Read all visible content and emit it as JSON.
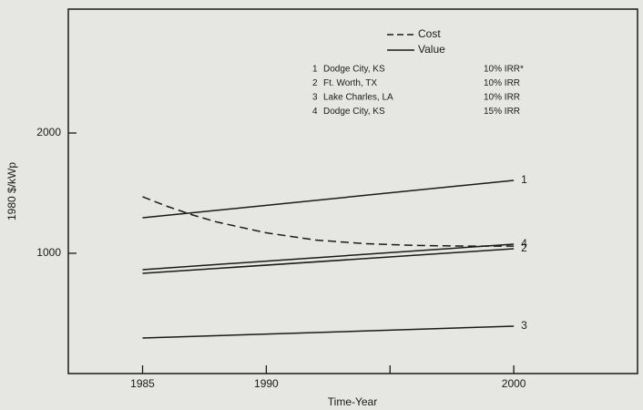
{
  "chart_data": {
    "type": "line",
    "title": null,
    "xlabel": "Time-Year",
    "ylabel": "1980 $/kWp",
    "xlim": [
      1982,
      2005
    ],
    "ylim": [
      0,
      3030
    ],
    "xticks": [
      1985,
      1990,
      {
        "value": 1995,
        "label": null
      },
      2000
    ],
    "yticks": [
      1000,
      2000
    ],
    "color": "#1a1a1a",
    "legend": [
      {
        "label": "Cost",
        "style": "dashed"
      },
      {
        "label": "Value",
        "style": "solid"
      }
    ],
    "scenarios": [
      {
        "number": "1",
        "location": "Dodge City, KS",
        "irr": "10% IRR*"
      },
      {
        "number": "2",
        "location": "Ft. Worth, TX",
        "irr": "10% IRR"
      },
      {
        "number": "3",
        "location": "Lake Charles, LA",
        "irr": "10% IRR"
      },
      {
        "number": "4",
        "location": "Dodge City, KS",
        "irr": "15% IRR"
      }
    ],
    "series": [
      {
        "label": null,
        "style": "dashed",
        "x": [
          1985,
          1986,
          1987,
          1988,
          1990,
          1992,
          1994,
          1996,
          1998,
          2000
        ],
        "values": [
          1470,
          1390,
          1320,
          1260,
          1170,
          1110,
          1080,
          1065,
          1060,
          1060
        ]
      },
      {
        "label": "1",
        "style": "solid",
        "x": [
          1985,
          2000
        ],
        "values": [
          1295,
          1606
        ]
      },
      {
        "label": "4",
        "style": "solid",
        "x": [
          1985,
          2000
        ],
        "values": [
          864,
          1076
        ]
      },
      {
        "label": "2",
        "style": "solid",
        "x": [
          1985,
          2000
        ],
        "values": [
          833,
          1038
        ]
      },
      {
        "label": "3",
        "style": "solid",
        "x": [
          1985,
          2000
        ],
        "values": [
          295,
          394
        ]
      }
    ]
  }
}
